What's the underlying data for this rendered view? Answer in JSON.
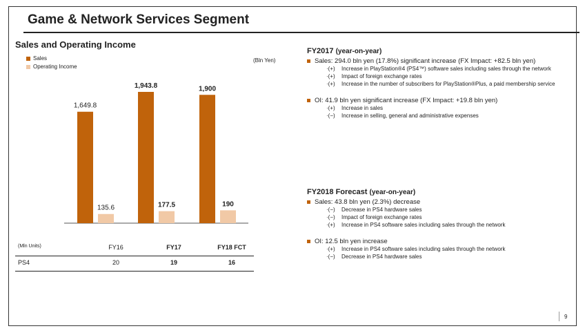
{
  "header": {
    "title": "Game & Network Services Segment"
  },
  "chart_title": "Sales and Operating Income",
  "colors": {
    "sales": "#c0630b",
    "oi": "#f1c9a6",
    "accent": "#c0630b"
  },
  "chart_data": {
    "type": "bar",
    "title": "Sales and Operating Income",
    "unit": "(Bln Yen)",
    "categories": [
      "FY16",
      "FY17",
      "FY18 FCT"
    ],
    "series": [
      {
        "name": "Sales",
        "values": [
          1649.8,
          1943.8,
          1900
        ],
        "labels": [
          "1,649.8",
          "1,943.8",
          "1,900"
        ]
      },
      {
        "name": "Operating Income",
        "values": [
          135.6,
          177.5,
          190
        ],
        "labels": [
          "135.6",
          "177.5",
          "190"
        ]
      }
    ],
    "bold_value_labels": [
      false,
      true,
      true
    ],
    "bold_categories": [
      false,
      true,
      true
    ],
    "legend_position": "top-left"
  },
  "table": {
    "unit_label": "(Mln Units)",
    "columns": [
      "FY16",
      "FY17",
      "FY18 FCT"
    ],
    "row_label": "PS4",
    "values": [
      "20",
      "19",
      "16"
    ]
  },
  "fy2017": {
    "title": "FY2017",
    "yoy": "(year-on-year)",
    "sales_line": "Sales: 294.0 bln yen (17.8%) significant increase (FX Impact: +82.5 bln yen)",
    "sales_items": [
      {
        "mark": "·(+)",
        "text": "Increase in PlayStation®4 (PS4™) software sales including sales through the network"
      },
      {
        "mark": "·(+)",
        "text": "Impact of foreign exchange rates"
      },
      {
        "mark": "·(+)",
        "text": "Increase in the number of subscribers for PlayStation®Plus, a paid membership service"
      }
    ],
    "oi_line": "OI: 41.9 bln yen significant increase (FX Impact: +19.8 bln yen)",
    "oi_items": [
      {
        "mark": "·(+)",
        "text": "Increase in sales"
      },
      {
        "mark": "·(−)",
        "text": "Increase in selling, general and administrative expenses"
      }
    ]
  },
  "fy2018": {
    "title": "FY2018 Forecast",
    "yoy": "(year-on-year)",
    "sales_line": "Sales: 43.8 bln yen (2.3%) decrease",
    "sales_items": [
      {
        "mark": "·(−)",
        "text": "Decrease in PS4 hardware sales"
      },
      {
        "mark": "·(−)",
        "text": "Impact of foreign exchange rates"
      },
      {
        "mark": "·(+)",
        "text": "Increase in PS4 software sales including sales through the network"
      }
    ],
    "oi_line": "OI: 12.5 bln yen increase",
    "oi_items": [
      {
        "mark": "·(+)",
        "text": "Increase in PS4 software sales including sales through the network"
      },
      {
        "mark": "·(−)",
        "text": "Decrease in PS4 hardware sales"
      }
    ]
  },
  "page_number": "9"
}
